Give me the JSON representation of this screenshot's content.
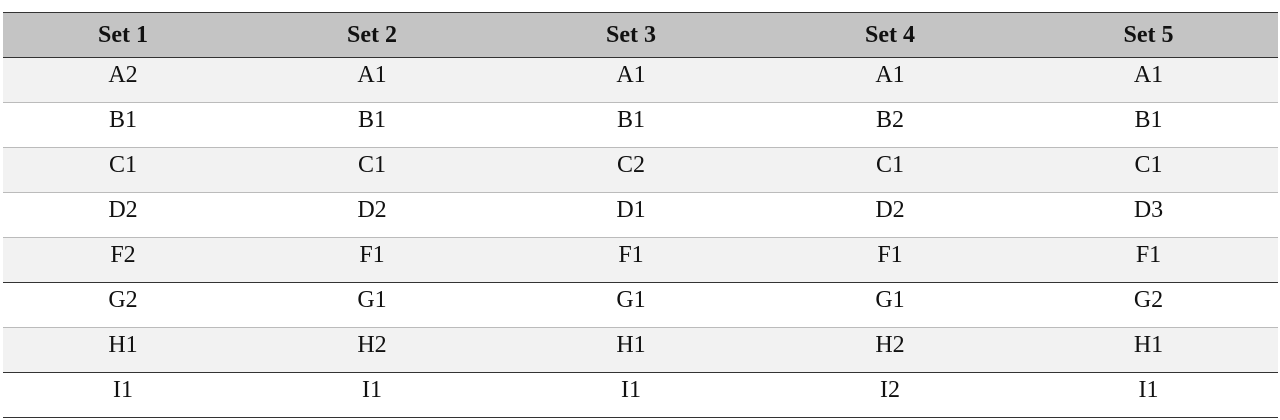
{
  "table": {
    "header": [
      "Set 1",
      "Set 2",
      "Set 3",
      "Set 4",
      "Set 5"
    ],
    "rows": [
      [
        "A2",
        "A1",
        "A1",
        "A1",
        "A1"
      ],
      [
        "B1",
        "B1",
        "B1",
        "B2",
        "B1"
      ],
      [
        "C1",
        "C1",
        "C2",
        "C1",
        "C1"
      ],
      [
        "D2",
        "D2",
        "D1",
        "D2",
        "D3"
      ],
      [
        "F2",
        "F1",
        "F1",
        "F1",
        "F1"
      ],
      [
        "G2",
        "G1",
        "G1",
        "G1",
        "G2"
      ],
      [
        "H1",
        "H2",
        "H1",
        "H2",
        "H1"
      ],
      [
        "I1",
        "I1",
        "I1",
        "I2",
        "I1"
      ]
    ]
  }
}
